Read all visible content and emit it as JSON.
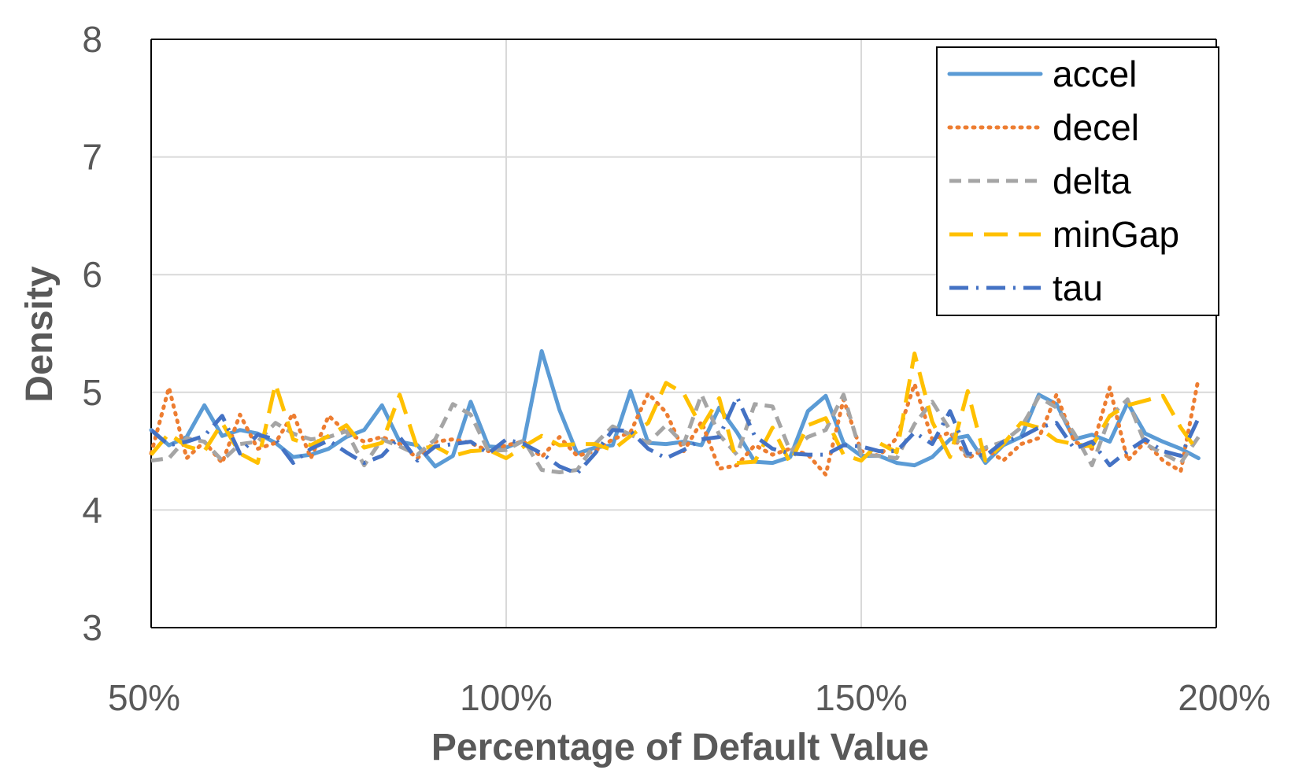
{
  "chart_data": {
    "type": "line",
    "title": "",
    "xlabel": "Percentage of Default Value",
    "ylabel": "Density",
    "xlim": [
      50,
      200
    ],
    "ylim": [
      3,
      8
    ],
    "x_ticks": [
      50,
      100,
      150,
      200
    ],
    "x_tick_labels": [
      "50%",
      "100%",
      "150%",
      "200%"
    ],
    "y_ticks": [
      3,
      4,
      5,
      6,
      7,
      8
    ],
    "y_tick_labels": [
      "3",
      "4",
      "5",
      "6",
      "7",
      "8"
    ],
    "grid": true,
    "legend_position": "top-right",
    "x": [
      50,
      52.5,
      55,
      57.5,
      60,
      62.5,
      65,
      67.5,
      70,
      72.5,
      75,
      77.5,
      80,
      82.5,
      85,
      87.5,
      90,
      92.5,
      95,
      97.5,
      100,
      102.5,
      105,
      107.5,
      110,
      112.5,
      115,
      117.5,
      120,
      122.5,
      125,
      127.5,
      130,
      132.5,
      135,
      137.5,
      140,
      142.5,
      145,
      147.5,
      150,
      152.5,
      155,
      157.5,
      160,
      162.5,
      165,
      167.5,
      170,
      172.5,
      175,
      177.5,
      180,
      182.5,
      185,
      187.5,
      190,
      192.5,
      195,
      197.5
    ],
    "series": [
      {
        "name": "accel",
        "color": "#5B9BD5",
        "dash": "solid",
        "values": [
          4.68,
          4.55,
          4.62,
          4.89,
          4.63,
          4.68,
          4.65,
          4.57,
          4.45,
          4.47,
          4.52,
          4.62,
          4.68,
          4.89,
          4.58,
          4.55,
          4.37,
          4.46,
          4.92,
          4.54,
          4.53,
          4.59,
          5.35,
          4.85,
          4.48,
          4.53,
          4.55,
          5.01,
          4.57,
          4.56,
          4.58,
          4.55,
          4.87,
          4.66,
          4.41,
          4.4,
          4.45,
          4.84,
          4.97,
          4.57,
          4.46,
          4.46,
          4.4,
          4.38,
          4.45,
          4.6,
          4.63,
          4.4,
          4.55,
          4.62,
          4.98,
          4.9,
          4.6,
          4.64,
          4.58,
          4.91,
          4.65,
          4.58,
          4.52,
          4.44
        ]
      },
      {
        "name": "decel",
        "color": "#ED7D31",
        "dash": "dotted",
        "values": [
          4.48,
          5.04,
          4.44,
          4.58,
          4.4,
          4.81,
          4.52,
          4.57,
          4.82,
          4.44,
          4.8,
          4.66,
          4.58,
          4.62,
          4.56,
          4.44,
          4.58,
          4.6,
          4.57,
          4.5,
          4.55,
          4.58,
          4.45,
          4.62,
          4.46,
          4.5,
          4.6,
          4.66,
          4.99,
          4.83,
          4.5,
          4.75,
          4.35,
          4.38,
          4.55,
          4.47,
          4.52,
          4.47,
          4.3,
          4.94,
          4.5,
          4.46,
          4.61,
          5.07,
          4.6,
          4.66,
          4.44,
          4.52,
          4.42,
          4.56,
          4.61,
          4.98,
          4.58,
          4.52,
          5.04,
          4.42,
          4.58,
          4.42,
          4.33,
          5.12
        ]
      },
      {
        "name": "delta",
        "color": "#A5A5A5",
        "dash": "dashed",
        "values": [
          4.42,
          4.44,
          4.61,
          4.58,
          4.42,
          4.56,
          4.58,
          4.74,
          4.65,
          4.6,
          4.62,
          4.67,
          4.38,
          4.6,
          4.54,
          4.47,
          4.6,
          4.9,
          4.81,
          4.5,
          4.51,
          4.59,
          4.34,
          4.32,
          4.34,
          4.56,
          4.71,
          4.64,
          4.57,
          4.72,
          4.56,
          4.98,
          4.64,
          4.47,
          4.9,
          4.88,
          4.5,
          4.62,
          4.68,
          4.98,
          4.47,
          4.46,
          4.44,
          4.73,
          4.92,
          4.68,
          4.46,
          4.53,
          4.58,
          4.7,
          4.96,
          4.87,
          4.65,
          4.38,
          4.79,
          4.94,
          4.56,
          4.48,
          4.4,
          4.62
        ]
      },
      {
        "name": "minGap",
        "color": "#FFC000",
        "dash": "longdash",
        "values": [
          4.47,
          4.65,
          4.54,
          4.5,
          4.74,
          4.48,
          4.4,
          5.07,
          4.6,
          4.55,
          4.63,
          4.72,
          4.53,
          4.57,
          4.98,
          4.52,
          4.54,
          4.46,
          4.5,
          4.51,
          4.44,
          4.54,
          4.63,
          4.55,
          4.56,
          4.56,
          4.51,
          4.63,
          4.74,
          5.08,
          4.99,
          4.7,
          4.95,
          4.4,
          4.41,
          4.7,
          4.4,
          4.72,
          4.78,
          4.47,
          4.42,
          4.57,
          4.49,
          5.33,
          4.75,
          4.45,
          5.01,
          4.42,
          4.56,
          4.74,
          4.7,
          4.59,
          4.56,
          4.54,
          4.8,
          4.89,
          4.93,
          4.97,
          4.7,
          4.49
        ]
      },
      {
        "name": "tau",
        "color": "#4472C4",
        "dash": "dashdot",
        "values": [
          4.68,
          4.55,
          4.58,
          4.63,
          4.8,
          4.48,
          4.64,
          4.6,
          4.4,
          4.52,
          4.59,
          4.49,
          4.4,
          4.46,
          4.62,
          4.42,
          4.54,
          4.56,
          4.58,
          4.48,
          4.6,
          4.56,
          4.48,
          4.37,
          4.31,
          4.48,
          4.68,
          4.67,
          4.52,
          4.44,
          4.51,
          4.6,
          4.62,
          4.96,
          4.63,
          4.52,
          4.48,
          4.47,
          4.47,
          4.55,
          4.54,
          4.5,
          4.5,
          4.66,
          4.56,
          4.84,
          4.48,
          4.46,
          4.58,
          4.62,
          4.7,
          4.74,
          4.52,
          4.58,
          4.38,
          4.5,
          4.6,
          4.5,
          4.46,
          4.78
        ]
      }
    ]
  }
}
